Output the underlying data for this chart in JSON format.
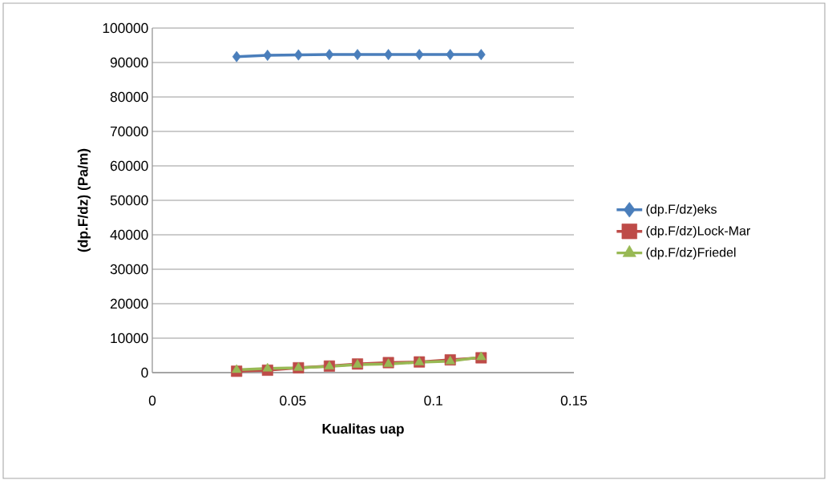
{
  "chart_data": {
    "type": "line",
    "xlabel": "Kualitas uap",
    "ylabel": "(dp.F/dz) (Pa/m)",
    "x": [
      0.03,
      0.041,
      0.052,
      0.063,
      0.073,
      0.084,
      0.095,
      0.106,
      0.117
    ],
    "series": [
      {
        "name": "(dp.F/dz)eks",
        "color": "#4a7ebb",
        "marker": "diamond",
        "values": [
          91700,
          92100,
          92200,
          92300,
          92300,
          92300,
          92300,
          92300,
          92300
        ]
      },
      {
        "name": "(dp.F/dz)Lock-Mar",
        "color": "#be4b48",
        "marker": "square",
        "values": [
          400,
          700,
          1400,
          1900,
          2500,
          2900,
          3100,
          3700,
          4300
        ]
      },
      {
        "name": "(dp.F/dz)Friedel",
        "color": "#98b954",
        "marker": "triangle",
        "values": [
          800,
          1200,
          1400,
          1800,
          2300,
          2500,
          3000,
          3300,
          4500
        ]
      }
    ],
    "xlim": [
      0,
      0.15
    ],
    "xticks": [
      0,
      0.05,
      0.1,
      0.15
    ],
    "ylim": [
      0,
      100000
    ],
    "yticks": [
      0,
      10000,
      20000,
      30000,
      40000,
      50000,
      60000,
      70000,
      80000,
      90000,
      100000
    ],
    "grid": "y",
    "legend": "right"
  }
}
